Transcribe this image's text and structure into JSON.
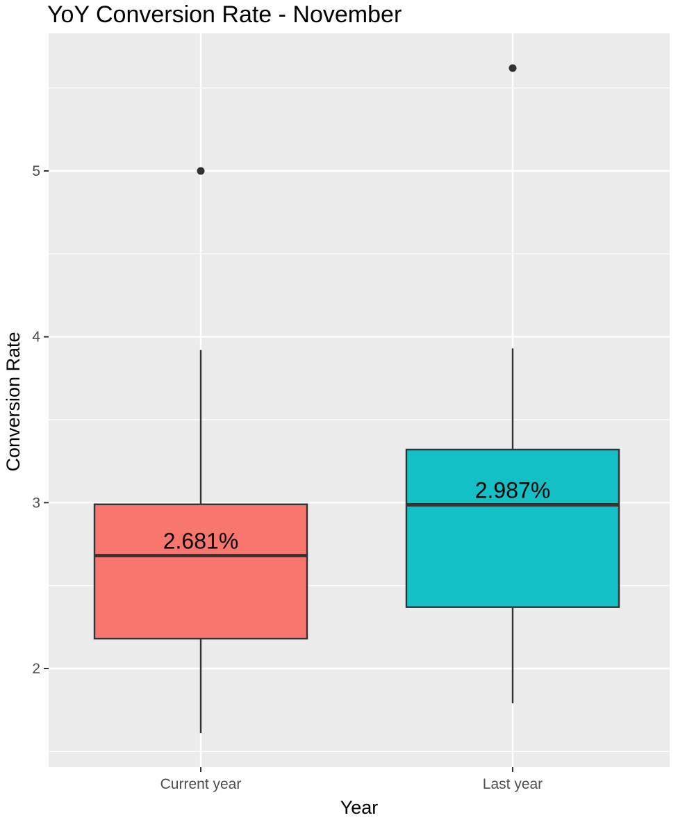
{
  "chart_data": {
    "type": "boxplot",
    "title": "YoY Conversion Rate - November",
    "xlabel": "Year",
    "ylabel": "Conversion Rate",
    "categories": [
      "Current year",
      "Last year"
    ],
    "ylim": [
      1.45,
      5.8
    ],
    "y_ticks": [
      2,
      3,
      4,
      5
    ],
    "grid": true,
    "legend": "none",
    "boxes": [
      {
        "category": "Current year",
        "whisker_low": 1.61,
        "q1": 2.18,
        "median": 2.681,
        "q3": 2.99,
        "whisker_high": 3.92,
        "outliers": [
          5.0
        ],
        "label": "2.681%",
        "color": "#F8766D"
      },
      {
        "category": "Last year",
        "whisker_low": 1.79,
        "q1": 2.37,
        "median": 2.987,
        "q3": 3.32,
        "whisker_high": 3.93,
        "outliers": [
          5.62
        ],
        "label": "2.987%",
        "color": "#13C0C6"
      }
    ],
    "panel_background": "#EBEBEB",
    "grid_color": "#FFFFFF",
    "line_color": "#333333"
  }
}
